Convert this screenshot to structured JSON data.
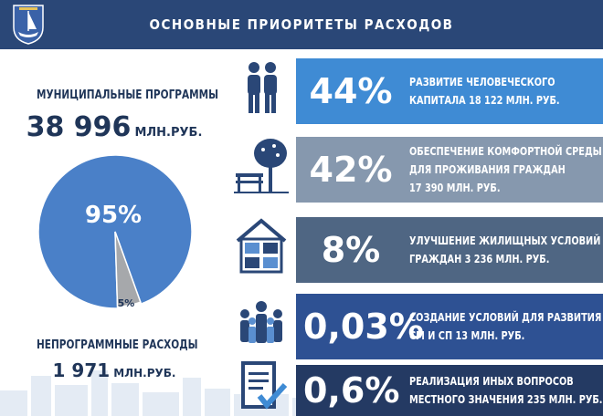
{
  "header": {
    "title": "ОСНОВНЫЕ ПРИОРИТЕТЫ РАСХОДОВ"
  },
  "left": {
    "programs_title": "МУНИЦИПАЛЬНЫЕ ПРОГРАММЫ",
    "programs_value": "38 996",
    "programs_unit": "МЛН.РУБ.",
    "nonprogram_title": "НЕПРОГРАММНЫЕ РАСХОДЫ",
    "nonprogram_value": "1 971",
    "nonprogram_unit": "МЛН.РУБ."
  },
  "chart_data": {
    "type": "pie",
    "categories": [
      "МУНИЦИПАЛЬНЫЕ ПРОГРАММЫ",
      "НЕПРОГРАММНЫЕ РАСХОДЫ"
    ],
    "values": [
      95,
      5
    ],
    "labels": [
      "95%",
      "5%"
    ],
    "colors": [
      "#4a80c8",
      "#a6a8ab"
    ]
  },
  "rows": [
    {
      "percent": "44%",
      "line1": "РАЗВИТИЕ ЧЕЛОВЕЧЕСКОГО",
      "line2": "КАПИТАЛА  18 122 МЛН. РУБ.",
      "line3": "",
      "color": "#3f8bd4",
      "icon": "people-icon"
    },
    {
      "percent": "42%",
      "line1": "ОБЕСПЕЧЕНИЕ КОМФОРТНОЙ СРЕДЫ",
      "line2": "ДЛЯ ПРОЖИВАНИЯ ГРАЖДАН",
      "line3": "17 390 МЛН. РУБ.",
      "color": "#8698ae",
      "icon": "tree-bench-icon"
    },
    {
      "percent": "8%",
      "line1": "УЛУЧШЕНИЕ ЖИЛИЩНЫХ  УСЛОВИЙ",
      "line2": "ГРАЖДАН 3 236 МЛН. РУБ.",
      "line3": "",
      "color": "#4f6683",
      "icon": "smart-house-icon"
    },
    {
      "percent": "0,03%",
      "line1": "СОЗДАНИЕ УСЛОВИЙ ДЛЯ РАЗВИТИЯ",
      "line2": "СМ И СП  13 МЛН. РУБ.",
      "line3": "",
      "color": "#2e5193",
      "icon": "group-icon"
    },
    {
      "percent": "0,6%",
      "line1": "РЕАЛИЗАЦИЯ ИНЫХ ВОПРОСОВ",
      "line2": "МЕСТНОГО ЗНАЧЕНИЯ 235 МЛН. РУБ.",
      "line3": "",
      "color": "#243a63",
      "icon": "checklist-icon"
    }
  ]
}
